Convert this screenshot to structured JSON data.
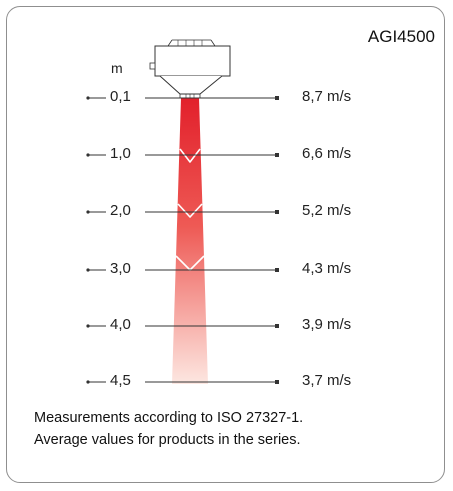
{
  "model": "AGI4500",
  "unit": "m",
  "rows": [
    {
      "depth": "0,1",
      "speed": "8,7 m/s"
    },
    {
      "depth": "1,0",
      "speed": "6,6 m/s"
    },
    {
      "depth": "2,0",
      "speed": "5,2 m/s"
    },
    {
      "depth": "3,0",
      "speed": "4,3 m/s"
    },
    {
      "depth": "4,0",
      "speed": "3,9 m/s"
    },
    {
      "depth": "4,5",
      "speed": "3,7 m/s"
    }
  ],
  "notes": {
    "line1": "Measurements according to ISO 27327-1.",
    "line2": "Average values for products in the series."
  },
  "colors": {
    "jet_top": "#e2202b",
    "jet_bottom": "#fbe3dc",
    "frame": "#8f8f8f",
    "lines": "#333333"
  }
}
